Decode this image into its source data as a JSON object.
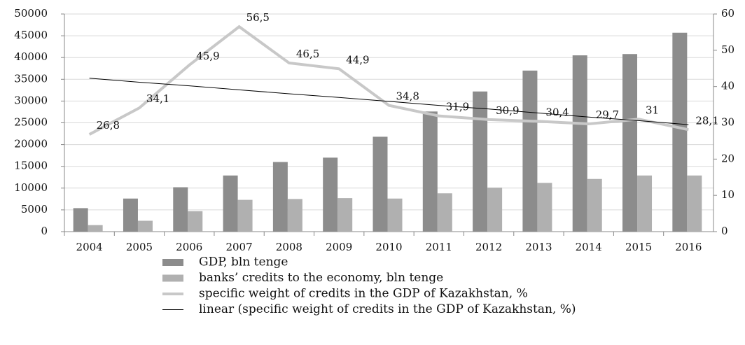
{
  "chart_data": {
    "type": "bar",
    "categories": [
      "2004",
      "2005",
      "2006",
      "2007",
      "2008",
      "2009",
      "2010",
      "2011",
      "2012",
      "2013",
      "2014",
      "2015",
      "2016"
    ],
    "series": [
      {
        "name": "GDP, bln tenge",
        "color": "#8c8c8c",
        "values": [
          5400,
          7600,
          10200,
          12900,
          16000,
          17000,
          21800,
          27600,
          32200,
          37000,
          40500,
          40800,
          45700
        ]
      },
      {
        "name": "banks’ credits to the economy, bln tenge",
        "color": "#b0b0b0",
        "values": [
          1500,
          2500,
          4700,
          7300,
          7500,
          7700,
          7600,
          8800,
          10100,
          11200,
          12100,
          12900,
          12900
        ]
      },
      {
        "name": "specific weight of credits in the GDP of Kazakhstan, %",
        "color": "#c8c8c8",
        "type": "line",
        "axis": "y2",
        "values": [
          26.8,
          34.1,
          45.9,
          56.5,
          46.5,
          44.9,
          34.8,
          31.9,
          30.9,
          30.4,
          29.7,
          31,
          28.1
        ],
        "value_labels": [
          "26,8",
          "34,1",
          "45,9",
          "56,5",
          "46,5",
          "44,9",
          "34,8",
          "31,9",
          "30,9",
          "30,4",
          "29,7",
          "31",
          "28,1"
        ]
      },
      {
        "name": "linear (specific weight of credits in the GDP of Kazakhstan, %)",
        "color": "#000000",
        "type": "line",
        "axis": "y2",
        "values": [
          42.3,
          41.2,
          40.2,
          39.1,
          38.0,
          37.0,
          35.9,
          34.8,
          33.8,
          32.7,
          31.6,
          30.6,
          29.5
        ]
      }
    ],
    "ylim": [
      0,
      50000
    ],
    "yticks": [
      0,
      5000,
      10000,
      15000,
      20000,
      25000,
      30000,
      35000,
      40000,
      45000,
      50000
    ],
    "y2lim": [
      0,
      60
    ],
    "y2ticks": [
      0,
      10,
      20,
      30,
      40,
      50,
      60
    ],
    "grid": true,
    "legend": "bottom"
  }
}
